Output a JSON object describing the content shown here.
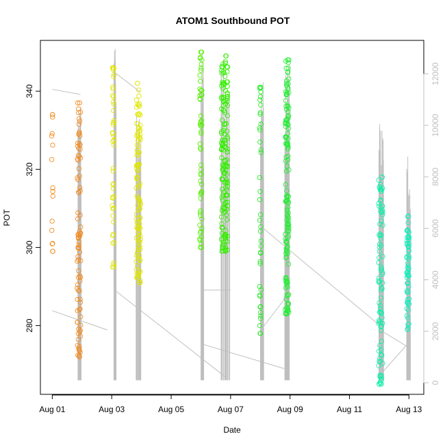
{
  "chart_data": {
    "type": "scatter",
    "title": "ATOM1 Southbound POT",
    "xlabel": "Date",
    "ylabel": "POT",
    "x_ticks": [
      "Aug 01",
      "Aug 03",
      "Aug 05",
      "Aug 07",
      "Aug 09",
      "Aug 11",
      "Aug 13"
    ],
    "x_tick_days": [
      1,
      3,
      5,
      7,
      9,
      11,
      13
    ],
    "x_range_days": [
      0.6,
      13.5
    ],
    "y_ticks": [
      280,
      300,
      320,
      340
    ],
    "ylim": [
      262.4,
      353
    ],
    "y2_ticks": [
      "0",
      "2000",
      "4000",
      "6000",
      "8000",
      "10000",
      "12000"
    ],
    "y2_values": [
      0,
      2000,
      4000,
      6000,
      8000,
      10000,
      12000
    ],
    "y2lim": [
      -450,
      13300
    ],
    "secondary_series": {
      "name": "",
      "color": "#bfbfbf",
      "path_points": [
        [
          1.0,
          11400
        ],
        [
          1.95,
          11200
        ],
        [
          1.95,
          3500
        ],
        [
          1.0,
          2800
        ],
        [
          1.0,
          11400
        ]
      ],
      "connector_lines": [
        [
          [
            1.0,
            11400
          ],
          [
            1.95,
            11200
          ]
        ],
        [
          [
            1.0,
            2800
          ],
          [
            2.85,
            2050
          ]
        ],
        [
          [
            3.05,
            12100
          ],
          [
            3.95,
            11300
          ]
        ],
        [
          [
            3.1,
            3600
          ],
          [
            6.85,
            200
          ]
        ],
        [
          [
            6.05,
            1500
          ],
          [
            8.8,
            550
          ]
        ],
        [
          [
            6.05,
            3600
          ],
          [
            7.0,
            3600
          ]
        ],
        [
          [
            8.05,
            2100
          ],
          [
            8.85,
            3300
          ]
        ],
        [
          [
            8.1,
            6000
          ],
          [
            12.05,
            2200
          ]
        ],
        [
          [
            12.1,
            400
          ],
          [
            12.95,
            1500
          ]
        ],
        [
          [
            12.1,
            2000
          ],
          [
            12.95,
            1400
          ]
        ]
      ],
      "spike_clusters": [
        {
          "x_start": 1.85,
          "x_end": 1.98,
          "min": 100,
          "max": 11400
        },
        {
          "x_start": 3.05,
          "x_end": 3.15,
          "min": 100,
          "max": 13000
        },
        {
          "x_start": 3.82,
          "x_end": 3.98,
          "min": 100,
          "max": 11400
        },
        {
          "x_start": 6.0,
          "x_end": 6.12,
          "min": 100,
          "max": 12800
        },
        {
          "x_start": 6.65,
          "x_end": 6.98,
          "min": 100,
          "max": 12600
        },
        {
          "x_start": 8.0,
          "x_end": 8.12,
          "min": 100,
          "max": 11800
        },
        {
          "x_start": 8.82,
          "x_end": 8.98,
          "min": 100,
          "max": 12500
        },
        {
          "x_start": 11.98,
          "x_end": 12.18,
          "min": 100,
          "max": 10200
        },
        {
          "x_start": 12.92,
          "x_end": 13.05,
          "min": 100,
          "max": 8800
        }
      ]
    },
    "clusters": [
      {
        "x_center": 1.0,
        "width": 0.04,
        "ymin": 299,
        "ymax": 334,
        "count": 16,
        "color": "#f28a1f"
      },
      {
        "x_center": 1.9,
        "width": 0.12,
        "ymin": 272,
        "ymax": 337,
        "count": 90,
        "color": "#f28a1f"
      },
      {
        "x_center": 3.05,
        "width": 0.06,
        "ymin": 295,
        "ymax": 346,
        "count": 45,
        "color": "#e0e600"
      },
      {
        "x_center": 3.9,
        "width": 0.14,
        "ymin": 291,
        "ymax": 342,
        "count": 110,
        "color": "#e0e600"
      },
      {
        "x_center": 6.0,
        "width": 0.07,
        "ymin": 300,
        "ymax": 350,
        "count": 55,
        "color": "#55ee00"
      },
      {
        "x_center": 6.8,
        "width": 0.22,
        "ymin": 299,
        "ymax": 349,
        "count": 160,
        "color": "#33ee00"
      },
      {
        "x_center": 8.0,
        "width": 0.05,
        "ymin": 278,
        "ymax": 341,
        "count": 40,
        "color": "#22ee22"
      },
      {
        "x_center": 8.9,
        "width": 0.12,
        "ymin": 283,
        "ymax": 348,
        "count": 140,
        "color": "#22ee33"
      },
      {
        "x_center": 12.05,
        "width": 0.14,
        "ymin": 265,
        "ymax": 318,
        "count": 90,
        "color": "#11eeaa"
      },
      {
        "x_center": 12.97,
        "width": 0.08,
        "ymin": 279,
        "ymax": 308,
        "count": 60,
        "color": "#11eebb"
      }
    ]
  }
}
